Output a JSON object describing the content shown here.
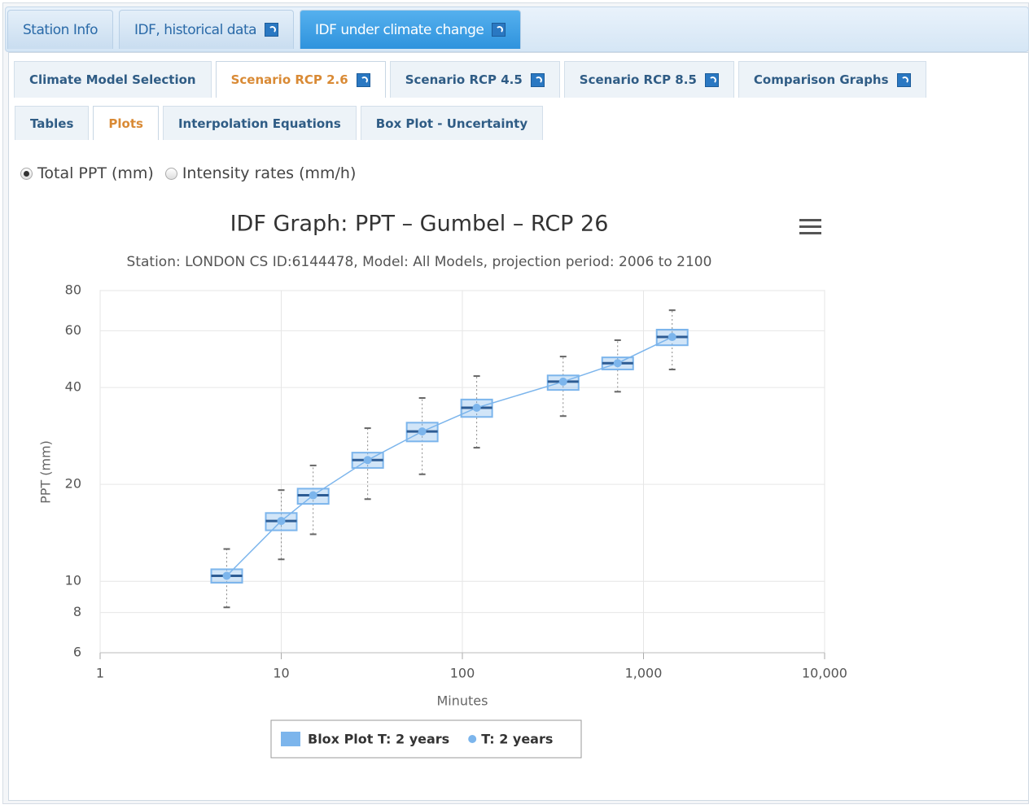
{
  "tabs": {
    "active": 2,
    "items": [
      {
        "label": "Station Info",
        "help": false
      },
      {
        "label": "IDF, historical data",
        "help": true
      },
      {
        "label": "IDF under climate change",
        "help": true
      }
    ]
  },
  "subtabs": {
    "active": 1,
    "items": [
      {
        "label": "Climate Model Selection",
        "help": false
      },
      {
        "label": "Scenario RCP 2.6",
        "help": true
      },
      {
        "label": "Scenario RCP 4.5",
        "help": true
      },
      {
        "label": "Scenario RCP 8.5",
        "help": true
      },
      {
        "label": "Comparison Graphs",
        "help": true
      }
    ]
  },
  "viewtabs": {
    "active": 1,
    "items": [
      {
        "label": "Tables",
        "help": false
      },
      {
        "label": "Plots",
        "help": false
      },
      {
        "label": "Interpolation Equations",
        "help": false
      },
      {
        "label": "Box Plot - Uncertainty",
        "help": false
      }
    ]
  },
  "radios": {
    "checked": 0,
    "options": [
      "Total PPT (mm)",
      "Intensity rates (mm/h)"
    ]
  },
  "chart_data": {
    "type": "boxplot",
    "title": "IDF Graph: PPT – Gumbel – RCP 26",
    "subtitle": "Station: LONDON CS ID:6144478, Model: All Models, projection period: 2006 to 2100",
    "x_label": "Minutes",
    "y_label": "PPT (mm)",
    "x": [
      5,
      10,
      15,
      30,
      60,
      120,
      360,
      720,
      1440
    ],
    "xlog": true,
    "ylog": true,
    "grid": true,
    "legend": "bottom",
    "xlim": [
      1,
      10000
    ],
    "xticks": [
      1,
      10,
      100,
      {
        "value": 1000,
        "label": "1,000"
      },
      {
        "value": 10000,
        "label": "10,000"
      }
    ],
    "ylim": [
      6,
      80
    ],
    "yticks": [
      6,
      8,
      10,
      20,
      40,
      60,
      80
    ],
    "series": [
      {
        "name": "Blox Plot T: 2 years",
        "type": "boxplot",
        "color": "#7cb5ec",
        "low": [
          8.3,
          11.7,
          14.0,
          18.0,
          21.5,
          26.0,
          32.6,
          38.8,
          45.5
        ],
        "q1": [
          9.9,
          14.4,
          17.4,
          22.5,
          27.2,
          32.4,
          39.3,
          45.5,
          54.1
        ],
        "median": [
          10.4,
          15.4,
          18.5,
          23.8,
          29.2,
          34.6,
          41.7,
          47.6,
          57.4
        ],
        "q3": [
          10.9,
          16.3,
          19.4,
          25.1,
          31.1,
          36.7,
          43.6,
          49.6,
          60.5
        ],
        "high": [
          12.6,
          19.2,
          22.9,
          29.9,
          37.1,
          43.4,
          49.9,
          56.1,
          69.5
        ]
      },
      {
        "name": "T: 2 years",
        "type": "line",
        "color": "#7cb5ec",
        "values": [
          10.4,
          15.4,
          18.5,
          23.8,
          29.2,
          34.6,
          41.7,
          47.6,
          57.4
        ]
      }
    ]
  }
}
